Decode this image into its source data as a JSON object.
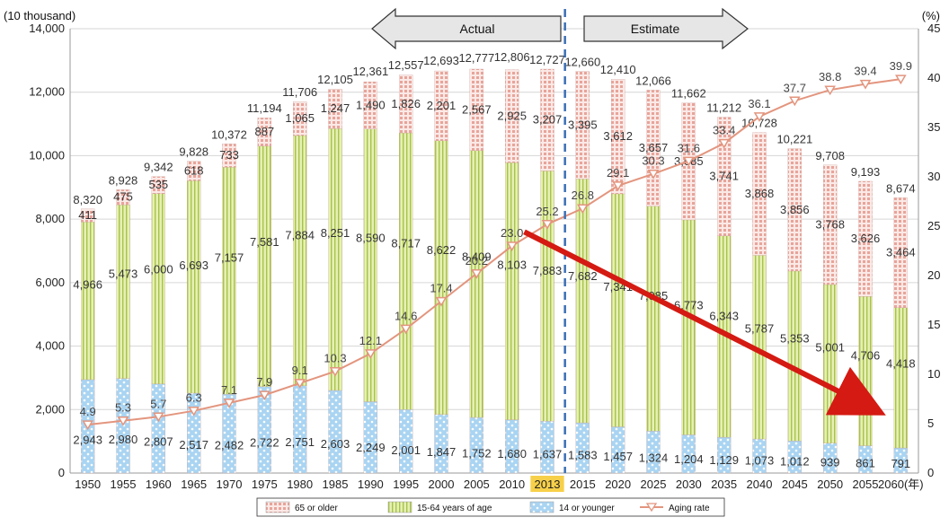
{
  "chart_data": {
    "type": "bar",
    "stacked": true,
    "left_axis_unit": "(10 thousand)",
    "right_axis_unit": "(%)",
    "x_suffix": "(年)",
    "categories": [
      "1950",
      "1955",
      "1960",
      "1965",
      "1970",
      "1975",
      "1980",
      "1985",
      "1990",
      "1995",
      "2000",
      "2005",
      "2010",
      "2013",
      "2015",
      "2020",
      "2025",
      "2030",
      "2035",
      "2040",
      "2045",
      "2050",
      "2055",
      "2060"
    ],
    "highlight_category": "2013",
    "ylim": [
      0,
      14000
    ],
    "y_ticks": [
      0,
      2000,
      4000,
      6000,
      8000,
      10000,
      12000,
      14000
    ],
    "y_tick_labels": [
      "0",
      "2,000",
      "4,000",
      "6,000",
      "8,000",
      "10,000",
      "12,000",
      "14,000"
    ],
    "y2lim": [
      0,
      45
    ],
    "y2_ticks": [
      0,
      5,
      10,
      15,
      20,
      25,
      30,
      35,
      40,
      45
    ],
    "series": [
      {
        "name": "14 or younger",
        "values": [
          2943,
          2980,
          2807,
          2517,
          2482,
          2722,
          2751,
          2603,
          2249,
          2001,
          1847,
          1752,
          1680,
          1637,
          1583,
          1457,
          1324,
          1204,
          1129,
          1073,
          1012,
          939,
          861,
          791
        ],
        "labels": [
          "2,943",
          "2,980",
          "2,807",
          "2,517",
          "2,482",
          "2,722",
          "2,751",
          "2,603",
          "2,249",
          "2,001",
          "1,847",
          "1,752",
          "1,680",
          "1,637",
          "1,583",
          "1,457",
          "1,324",
          "1,204",
          "1,129",
          "1,073",
          "1,012",
          "939",
          "861",
          "791"
        ]
      },
      {
        "name": "15-64 years of age",
        "values": [
          4966,
          5473,
          6000,
          6693,
          7157,
          7581,
          7884,
          8251,
          8590,
          8717,
          8622,
          8409,
          8103,
          7883,
          7682,
          7341,
          7085,
          6773,
          6343,
          5787,
          5353,
          5001,
          4706,
          4418
        ],
        "labels": [
          "4,966",
          "5,473",
          "6,000",
          "6,693",
          "7,157",
          "7,581",
          "7,884",
          "8,251",
          "8,590",
          "8,717",
          "8,622",
          "8,409",
          "8,103",
          "7,883",
          "7,682",
          "7,341",
          "7,085",
          "6,773",
          "6,343",
          "5,787",
          "5,353",
          "5,001",
          "4,706",
          "4,418"
        ]
      },
      {
        "name": "65 or older",
        "values": [
          411,
          475,
          535,
          618,
          733,
          887,
          1065,
          1247,
          1490,
          1826,
          2201,
          2567,
          2925,
          3207,
          3395,
          3612,
          3657,
          3685,
          3741,
          3868,
          3856,
          3768,
          3626,
          3464
        ],
        "labels": [
          "411",
          "475",
          "535",
          "618",
          "733",
          "887",
          "1,065",
          "1,247",
          "1,490",
          "1,826",
          "2,201",
          "2,567",
          "2,925",
          "3,207",
          "3,395",
          "3,612",
          "3,657",
          "3,685",
          "3,741",
          "3,868",
          "3,856",
          "3,768",
          "3,626",
          "3,464"
        ]
      }
    ],
    "totals": [
      8320,
      8928,
      9342,
      9828,
      10372,
      11194,
      11706,
      12105,
      12361,
      12557,
      12693,
      12777,
      12806,
      12727,
      12660,
      12410,
      12066,
      11662,
      11212,
      10728,
      10221,
      9708,
      9193,
      8674
    ],
    "total_labels": [
      "8,320",
      "8,928",
      "9,342",
      "9,828",
      "10,372",
      "11,194",
      "11,706",
      "12,105",
      "12,361",
      "12,557",
      "12,693",
      "12,777",
      "12,806",
      "12,727",
      "12,660",
      "12,410",
      "12,066",
      "11,662",
      "11,212",
      "10,728",
      "10,221",
      "9,708",
      "9,193",
      "8,674"
    ],
    "line_series": {
      "name": "Aging rate",
      "axis": "right",
      "values": [
        4.9,
        5.3,
        5.7,
        6.3,
        7.1,
        7.9,
        9.1,
        10.3,
        12.1,
        14.6,
        17.4,
        20.2,
        23.0,
        25.2,
        26.8,
        29.1,
        30.3,
        31.6,
        33.4,
        36.1,
        37.7,
        38.8,
        39.4,
        39.9
      ],
      "labels": [
        "4.9",
        "5.3",
        "5.7",
        "6.3",
        "7.1",
        "7.9",
        "9.1",
        "10.3",
        "12.1",
        "14.6",
        "17.4",
        "20.2",
        "23.0",
        "25.2",
        "26.8",
        "29.1",
        "30.3",
        "31.6",
        "33.4",
        "36.1",
        "37.7",
        "38.8",
        "39.4",
        "39.9"
      ]
    },
    "annotations": {
      "actual_label": "Actual",
      "estimate_label": "Estimate",
      "divider_after": "2013"
    },
    "arrow": {
      "from_category": "2010",
      "from_value": 7600,
      "to_category": "2055",
      "to_value": 2200
    },
    "legend": [
      "65 or older",
      "15-64 years of age",
      "14 or younger",
      "Aging rate"
    ],
    "legend_position": "bottom",
    "grid": true
  },
  "colors": {
    "young": "#a9d4f2",
    "working": "#d6e88a",
    "old": "#f0bfb8",
    "line": "#e3957e",
    "arrow": "#d41a12",
    "divider": "#3b6fb5",
    "highlight": "#f7d04a"
  }
}
